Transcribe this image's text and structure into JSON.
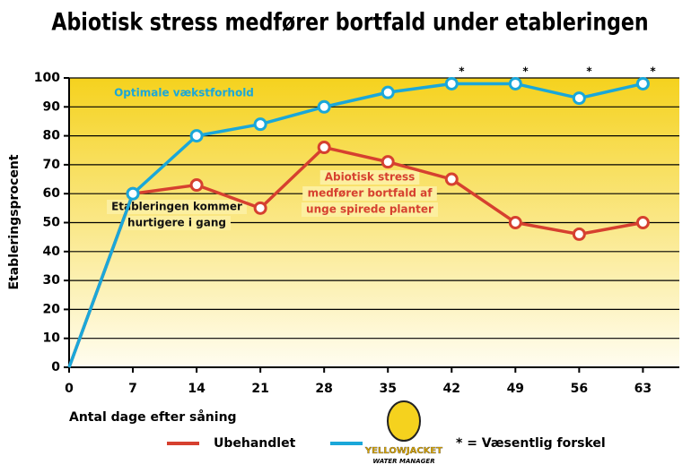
{
  "chart_data": {
    "type": "line",
    "title": "Abiotisk stress medfører bortfald under etableringen",
    "x_label": "Antal dage efter såning",
    "y_label": "Etableringsprocent",
    "x": [
      0,
      7,
      14,
      21,
      28,
      35,
      42,
      49,
      56,
      63
    ],
    "series": [
      {
        "name": "Ubehandlet",
        "color": "#d6402f",
        "values": [
          0,
          60,
          63,
          55,
          76,
          71,
          65,
          50,
          46,
          50
        ]
      },
      {
        "name": "YELLOWJACKET",
        "color": "#1aa7d9",
        "values": [
          0,
          60,
          80,
          84,
          90,
          95,
          98,
          98,
          93,
          98
        ]
      }
    ],
    "logo_subtext": "WATER MANAGER",
    "xlim": [
      0,
      67
    ],
    "xticks": [
      0,
      7,
      14,
      21,
      28,
      35,
      42,
      49,
      56,
      63
    ],
    "ylim": [
      0,
      100
    ],
    "yticks": [
      0,
      10,
      20,
      30,
      40,
      50,
      60,
      70,
      80,
      90,
      100
    ],
    "grid": true,
    "significance": {
      "x": [
        42,
        49,
        56,
        63
      ],
      "label": "*"
    },
    "annotations": [
      {
        "lines": [
          "Optimale vækstforhold"
        ],
        "color": "#1aa7d9"
      },
      {
        "lines": [
          "Etableringen kommer",
          "hurtigere i gang"
        ],
        "color": "#111111"
      },
      {
        "lines": [
          "Abiotisk stress",
          "medfører bortfald af",
          "unge spirede planter"
        ],
        "color": "#d6402f"
      }
    ],
    "footnote": "* = Væsentlig forskel"
  }
}
